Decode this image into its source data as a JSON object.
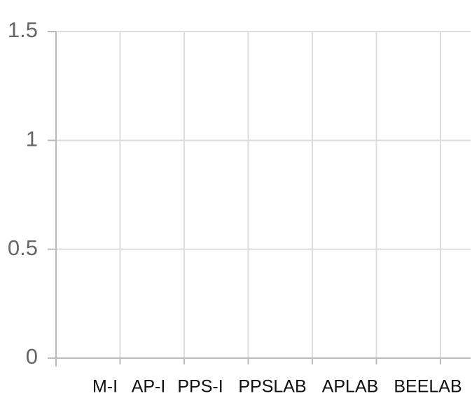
{
  "chart_data": {
    "type": "bar",
    "categories": [
      "M-I",
      "AP-I",
      "PPS-I",
      "PPSLAB",
      "APLAB",
      "BEELAB"
    ],
    "values": [
      0,
      0,
      0,
      0,
      0,
      0
    ],
    "color": "#4472c4",
    "ylim": [
      0,
      1.5
    ],
    "yticks": [
      0,
      0.5,
      1,
      1.5
    ],
    "grid": true
  }
}
